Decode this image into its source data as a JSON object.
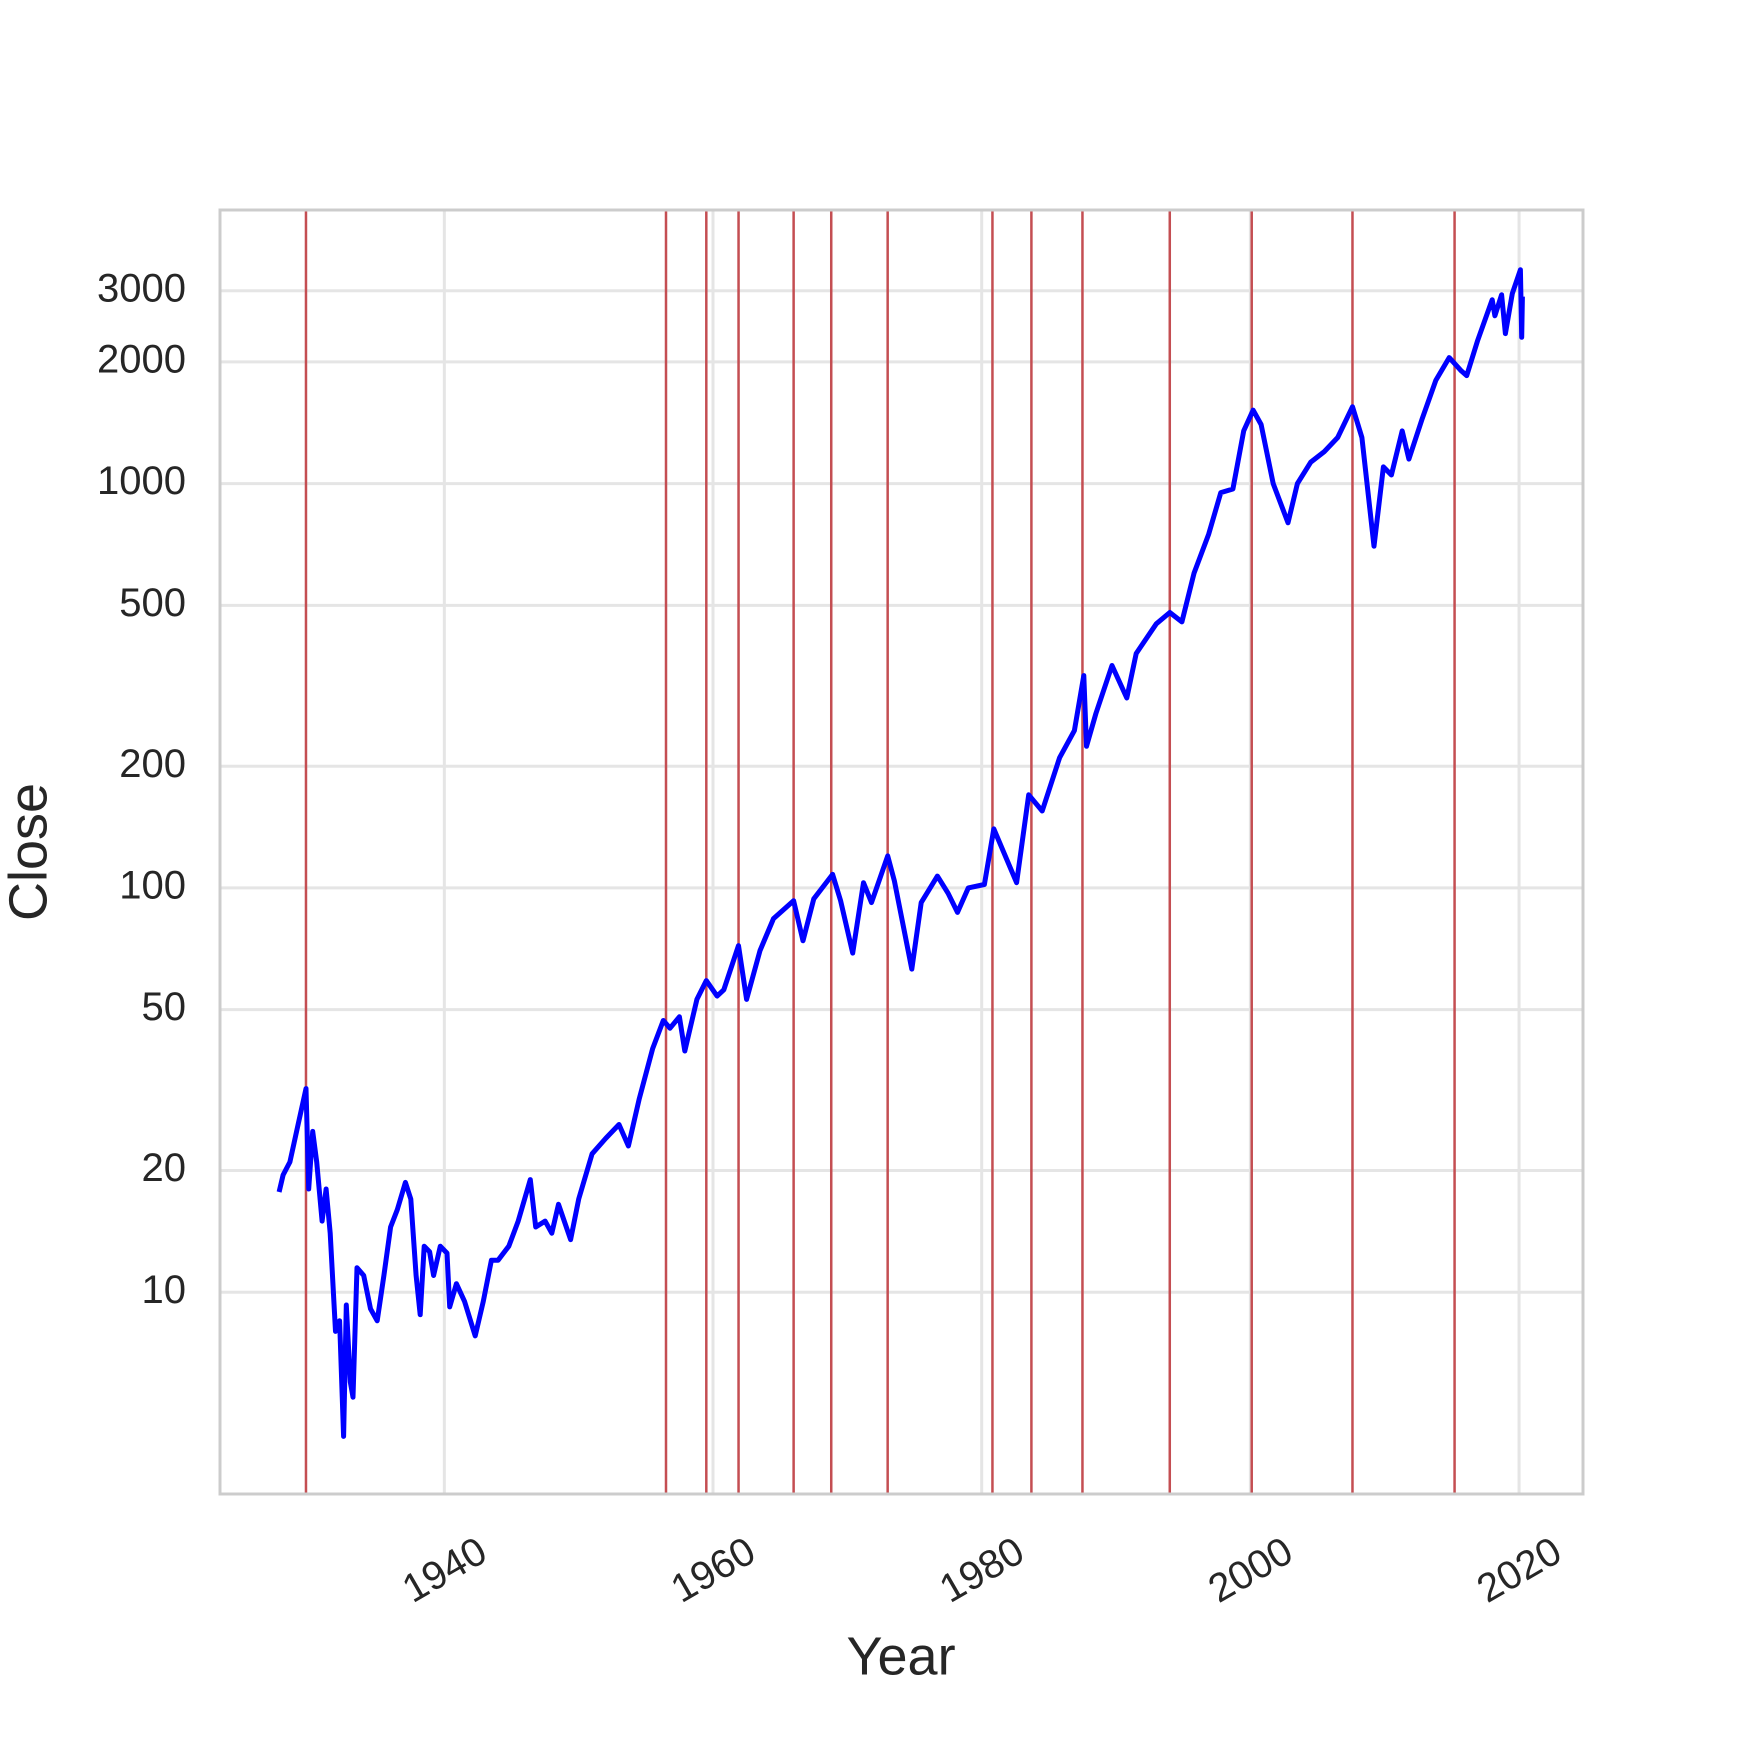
{
  "chart_data": {
    "type": "line",
    "x_label": "Year",
    "y_label": "Close",
    "log_y": true,
    "grid": true,
    "color": "#0000ff",
    "vline_color": "#c44e52",
    "xlim": [
      1923.3,
      2024.76
    ],
    "ylim": [
      3.17,
      4750
    ],
    "xticks": [
      1940,
      1960,
      1980,
      2000,
      2020
    ],
    "yticks": [
      10,
      20,
      50,
      100,
      200,
      500,
      1000,
      2000,
      3000
    ],
    "vlines": [
      1929.7,
      1956.5,
      1959.5,
      1961.9,
      1966.0,
      1968.8,
      1973.0,
      1980.8,
      1983.7,
      1987.5,
      1994.0,
      2000.1,
      2007.6,
      2015.2
    ],
    "x": [
      1927.7,
      1928.0,
      1928.5,
      1929.0,
      1929.7,
      1929.9,
      1930.2,
      1930.5,
      1930.9,
      1931.2,
      1931.5,
      1931.9,
      1932.2,
      1932.5,
      1932.7,
      1933.0,
      1933.2,
      1933.5,
      1934.0,
      1934.5,
      1935.0,
      1935.5,
      1936.0,
      1936.5,
      1937.1,
      1937.5,
      1937.9,
      1938.2,
      1938.5,
      1938.9,
      1939.2,
      1939.7,
      1940.2,
      1940.4,
      1940.9,
      1941.5,
      1942.3,
      1942.9,
      1943.5,
      1944.0,
      1944.8,
      1945.5,
      1946.4,
      1946.8,
      1947.5,
      1948.0,
      1948.5,
      1949.4,
      1950.0,
      1951.0,
      1952.0,
      1953.0,
      1953.7,
      1954.5,
      1955.5,
      1956.3,
      1956.8,
      1957.5,
      1957.9,
      1958.8,
      1959.5,
      1960.3,
      1960.8,
      1961.9,
      1962.5,
      1963.5,
      1964.5,
      1966.0,
      1966.7,
      1967.5,
      1968.9,
      1969.5,
      1970.4,
      1971.2,
      1971.8,
      1973.0,
      1973.5,
      1974.8,
      1975.5,
      1976.7,
      1977.5,
      1978.2,
      1979.0,
      1980.2,
      1980.9,
      1982.6,
      1983.5,
      1984.5,
      1985.8,
      1986.9,
      1987.6,
      1987.8,
      1988.5,
      1989.7,
      1990.8,
      1991.5,
      1993.0,
      1994.0,
      1994.9,
      1995.8,
      1996.9,
      1997.8,
      1998.7,
      1999.5,
      2000.2,
      2000.8,
      2001.7,
      2002.8,
      2003.5,
      2004.5,
      2005.5,
      2006.5,
      2007.6,
      2008.3,
      2009.2,
      2009.9,
      2010.5,
      2011.3,
      2011.8,
      2012.8,
      2013.8,
      2014.8,
      2015.7,
      2016.1,
      2016.9,
      2018.0,
      2018.2,
      2018.7,
      2018.98,
      2019.5,
      2020.1,
      2020.2,
      2020.25
    ],
    "values": [
      17.7,
      19.5,
      21,
      25,
      31.9,
      18,
      25,
      21,
      15,
      18,
      14,
      8,
      8.5,
      4.4,
      9.3,
      6.0,
      5.5,
      11.5,
      11,
      9.1,
      8.5,
      11,
      14.5,
      16,
      18.7,
      17,
      11,
      8.8,
      13,
      12.6,
      11,
      13,
      12.5,
      9.2,
      10.5,
      9.5,
      7.8,
      9.5,
      12,
      12,
      13,
      15,
      19,
      14.5,
      15,
      14,
      16.5,
      13.5,
      17,
      22,
      24,
      26,
      23,
      30,
      40,
      47,
      45,
      48,
      39.5,
      53,
      59,
      54,
      56,
      72,
      53,
      70,
      84,
      93,
      74,
      94,
      108,
      93,
      69,
      103,
      92,
      120,
      104,
      63,
      92,
      107,
      97,
      87,
      100,
      102,
      140,
      103,
      170,
      155,
      210,
      245,
      335,
      224,
      270,
      355,
      295,
      380,
      450,
      480,
      455,
      600,
      750,
      950,
      970,
      1350,
      1520,
      1400,
      1000,
      800,
      1000,
      1130,
      1200,
      1300,
      1550,
      1300,
      700,
      1100,
      1050,
      1350,
      1150,
      1450,
      1800,
      2050,
      1900,
      1850,
      2250,
      2850,
      2600,
      2930,
      2350,
      2950,
      3380,
      2300,
      2900
    ]
  }
}
